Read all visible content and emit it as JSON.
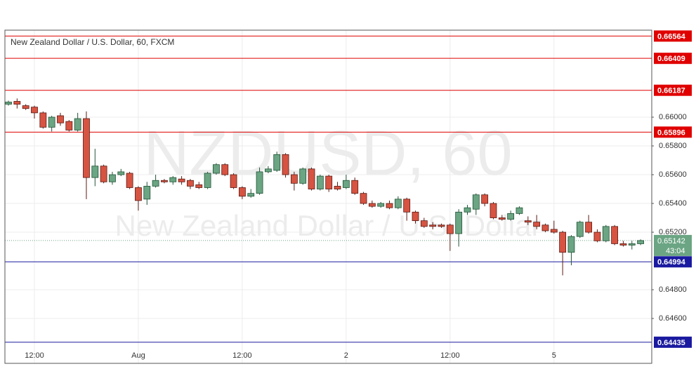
{
  "chart_data": {
    "type": "candlestick",
    "title": "New Zealand Dollar / U.S. Dollar, 60, FXCM",
    "watermark": "NZDUSD, 60",
    "watermark_subtitle": "New Zealand Dollar / U.S. Dollar",
    "categories": [
      null,
      null,
      null,
      "12:00",
      null,
      null,
      null,
      null,
      null,
      null,
      null,
      null,
      null,
      null,
      null,
      "Aug",
      null,
      null,
      null,
      null,
      null,
      null,
      null,
      null,
      null,
      null,
      null,
      "12:00",
      null,
      null,
      null,
      null,
      null,
      null,
      null,
      null,
      null,
      null,
      null,
      "2",
      null,
      null,
      null,
      null,
      null,
      null,
      null,
      null,
      null,
      null,
      null,
      "12:00",
      null,
      null,
      null,
      null,
      null,
      null,
      null,
      null,
      null,
      null,
      null,
      "5",
      null,
      null,
      null,
      null,
      null,
      null,
      null,
      null,
      null,
      null
    ],
    "open": [
      0.6609,
      0.6611,
      0.6608,
      0.6607,
      0.6603,
      0.6593,
      0.6601,
      0.6597,
      0.6591,
      0.6599,
      0.6558,
      0.6566,
      0.6555,
      0.656,
      0.6561,
      0.6551,
      0.6543,
      0.6552,
      0.6556,
      0.6555,
      0.6557,
      0.6556,
      0.6553,
      0.6551,
      0.6561,
      0.6567,
      0.656,
      0.6551,
      0.6545,
      0.6547,
      0.6562,
      0.6563,
      0.6574,
      0.656,
      0.6554,
      0.6564,
      0.655,
      0.6559,
      0.6552,
      0.6551,
      0.6556,
      0.6547,
      0.654,
      0.6538,
      0.654,
      0.6537,
      0.6543,
      0.6534,
      0.6528,
      0.6525,
      0.6525,
      0.6525,
      0.6519,
      0.6534,
      0.6536,
      0.6546,
      0.654,
      0.653,
      0.6529,
      0.6533,
      0.6528,
      0.6527,
      0.6525,
      0.6522,
      0.652,
      0.6506,
      0.6517,
      0.6527,
      0.652,
      0.6514,
      0.6524,
      0.6512,
      0.6511,
      0.6512
    ],
    "high": [
      0.66115,
      0.6613,
      0.6609,
      0.6608,
      0.6604,
      0.6601,
      0.6603,
      0.6598,
      0.6603,
      0.6604,
      0.6578,
      0.6567,
      0.6562,
      0.6564,
      0.6562,
      0.6552,
      0.6555,
      0.656,
      0.6557,
      0.6559,
      0.6559,
      0.6557,
      0.6555,
      0.6562,
      0.6568,
      0.6568,
      0.6561,
      0.6552,
      0.655,
      0.6565,
      0.6566,
      0.6576,
      0.6575,
      0.6562,
      0.6565,
      0.6565,
      0.656,
      0.656,
      0.6555,
      0.656,
      0.6558,
      0.6548,
      0.6542,
      0.6541,
      0.6542,
      0.6545,
      0.6544,
      0.6535,
      0.653,
      0.6527,
      0.6526,
      0.6526,
      0.6536,
      0.6539,
      0.6547,
      0.6547,
      0.6541,
      0.6532,
      0.6535,
      0.6538,
      0.6531,
      0.6532,
      0.6526,
      0.6528,
      0.6521,
      0.6518,
      0.6528,
      0.6532,
      0.6522,
      0.6525,
      0.6525,
      0.6514,
      0.6514,
      0.6515
    ],
    "low": [
      0.6608,
      0.6606,
      0.6605,
      0.6599,
      0.6592,
      0.659,
      0.6594,
      0.659,
      0.659,
      0.6543,
      0.6552,
      0.6554,
      0.6553,
      0.6559,
      0.655,
      0.6535,
      0.6539,
      0.6551,
      0.6554,
      0.6553,
      0.6553,
      0.655,
      0.655,
      0.655,
      0.656,
      0.6559,
      0.655,
      0.6543,
      0.6544,
      0.6546,
      0.6561,
      0.6562,
      0.6558,
      0.6549,
      0.6553,
      0.6549,
      0.6549,
      0.6548,
      0.6549,
      0.655,
      0.6546,
      0.6539,
      0.6537,
      0.6537,
      0.6536,
      0.6536,
      0.6528,
      0.6526,
      0.6523,
      0.6522,
      0.6523,
      0.6507,
      0.651,
      0.6532,
      0.6532,
      0.6538,
      0.6529,
      0.6528,
      0.6528,
      0.6532,
      0.6525,
      0.6522,
      0.652,
      0.6519,
      0.649,
      0.6497,
      0.6516,
      0.6519,
      0.6513,
      0.6513,
      0.6511,
      0.651,
      0.6508,
      0.6511
    ],
    "close": [
      0.66105,
      0.6609,
      0.6606,
      0.6603,
      0.6593,
      0.66,
      0.6596,
      0.6591,
      0.6599,
      0.6558,
      0.6566,
      0.6555,
      0.656,
      0.6562,
      0.6551,
      0.6542,
      0.6552,
      0.6556,
      0.6555,
      0.6558,
      0.6555,
      0.6552,
      0.6551,
      0.6561,
      0.6567,
      0.656,
      0.6551,
      0.6545,
      0.6547,
      0.6562,
      0.6564,
      0.6574,
      0.656,
      0.6554,
      0.6564,
      0.655,
      0.6559,
      0.655,
      0.655,
      0.6556,
      0.6547,
      0.654,
      0.6538,
      0.654,
      0.6537,
      0.6543,
      0.6534,
      0.6528,
      0.6524,
      0.6524,
      0.6524,
      0.6519,
      0.6534,
      0.6537,
      0.6546,
      0.654,
      0.653,
      0.6529,
      0.6533,
      0.6537,
      0.6527,
      0.6524,
      0.6521,
      0.652,
      0.6506,
      0.6517,
      0.6527,
      0.652,
      0.6514,
      0.6524,
      0.6512,
      0.6511,
      0.6512,
      0.65142
    ],
    "up_color": "#6ba583",
    "up_border": "#225437",
    "down_color": "#d75442",
    "down_border": "#5b1a13",
    "ylim": [
      0.64288,
      0.66605
    ],
    "yticks": [
      {
        "value": 0.646,
        "label": "0.64600"
      },
      {
        "value": 0.648,
        "label": "0.64800"
      },
      {
        "value": 0.652,
        "label": "0.65200"
      },
      {
        "value": 0.654,
        "label": "0.65400"
      },
      {
        "value": 0.656,
        "label": "0.65600"
      },
      {
        "value": 0.658,
        "label": "0.65800"
      },
      {
        "value": 0.66,
        "label": "0.66000"
      }
    ],
    "grid": true,
    "levels": [
      {
        "value": 0.66564,
        "color": "#e00000"
      },
      {
        "value": 0.66409,
        "color": "#e00000"
      },
      {
        "value": 0.66187,
        "color": "#e00000"
      },
      {
        "value": 0.65896,
        "color": "#e00000"
      },
      {
        "value": 0.64994,
        "color": "#1a1aa0"
      },
      {
        "value": 0.64435,
        "color": "#1a1aa0"
      }
    ],
    "last_price": 0.65142,
    "last_price_color": "#6ba583",
    "countdown": "43:04"
  }
}
